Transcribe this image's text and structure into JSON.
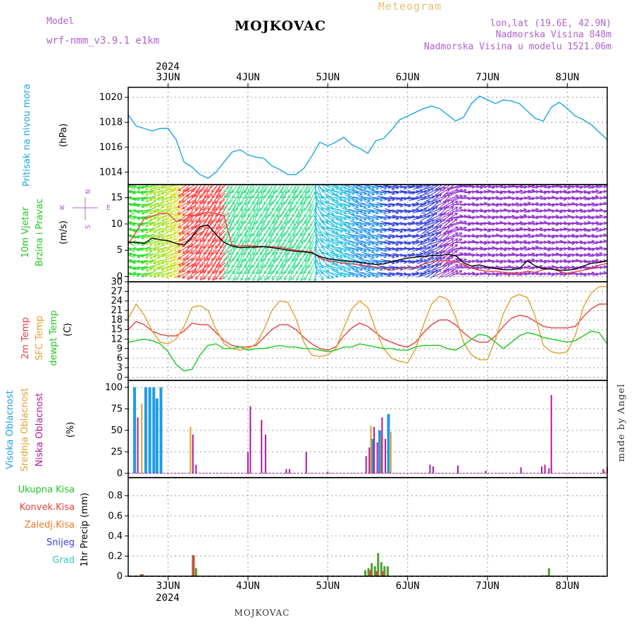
{
  "header": {
    "model_label": "Model",
    "model_name": "wrf-nmm_v3.9.1 e1km",
    "location": "MOJKOVAC",
    "meteogram": "Meteogram",
    "lonlat": "lon,lat (19.6E, 42.9N)",
    "altitude": "Nadmorska Visina 848m",
    "model_altitude": "Nadmorska Visina u modelu 1521.06m",
    "footer_location": "MOJKOVAC",
    "watermark": "made by Angel"
  },
  "time_axis": {
    "year": "2024",
    "days": [
      "3JUN",
      "4JUN",
      "5JUN",
      "6JUN",
      "7JUN",
      "8JUN"
    ]
  },
  "colors": {
    "pressure": "#1ca5e6",
    "temp2m": "#e8413c",
    "sfc_temp": "#e0a030",
    "dewpoint": "#1fc81f",
    "high_cloud": "#1f9be6",
    "mid_cloud": "#e0a030",
    "low_cloud": "#b0189a",
    "total_precip": "#4aa030",
    "conv_precip": "#e8413c",
    "frozen_precip": "#ee7722",
    "snow": "#3a3ae8",
    "hail": "#30c8c8",
    "wind_text": "#b060d0"
  },
  "chart_data": [
    {
      "type": "line",
      "title": "",
      "ylabel_lines": [
        "Pritisak na nivou mora",
        "(hPa)"
      ],
      "ylim": [
        1013,
        1020.8
      ],
      "yticks": [
        1014,
        1016,
        1018,
        1020
      ],
      "grid": true,
      "x": [
        2.5,
        2.6,
        2.7,
        2.8,
        2.9,
        3.0,
        3.1,
        3.2,
        3.3,
        3.4,
        3.5,
        3.6,
        3.7,
        3.8,
        3.9,
        4.0,
        4.1,
        4.2,
        4.3,
        4.4,
        4.5,
        4.6,
        4.7,
        4.8,
        4.9,
        5.0,
        5.1,
        5.2,
        5.3,
        5.4,
        5.5,
        5.6,
        5.7,
        5.8,
        5.9,
        6.0,
        6.1,
        6.2,
        6.3,
        6.4,
        6.5,
        6.6,
        6.7,
        6.8,
        6.9,
        7.0,
        7.1,
        7.2,
        7.3,
        7.4,
        7.5,
        7.6,
        7.7,
        7.8,
        7.9,
        8.0,
        8.1,
        8.2,
        8.3,
        8.4,
        8.5
      ],
      "series": [
        {
          "name": "",
          "values": [
            1018.6,
            1017.7,
            1017.5,
            1017.3,
            1017.5,
            1017.5,
            1016.6,
            1014.8,
            1014.4,
            1013.8,
            1013.5,
            1014.0,
            1014.8,
            1015.6,
            1015.8,
            1015.4,
            1015.2,
            1015.1,
            1014.5,
            1014.2,
            1013.8,
            1013.8,
            1014.3,
            1015.3,
            1016.4,
            1016.1,
            1016.4,
            1016.8,
            1016.2,
            1015.9,
            1015.5,
            1016.5,
            1016.7,
            1017.4,
            1018.2,
            1018.5,
            1018.8,
            1019.1,
            1019.3,
            1019.1,
            1018.6,
            1018.1,
            1018.4,
            1019.5,
            1020.1,
            1019.8,
            1019.5,
            1019.8,
            1019.7,
            1019.5,
            1018.9,
            1018.3,
            1018.1,
            1019.2,
            1019.6,
            1019.1,
            1018.5,
            1018.2,
            1017.8,
            1017.2,
            1016.6
          ]
        }
      ]
    },
    {
      "type": "barbs",
      "title": "",
      "ylabel_lines": [
        "10m Vjetar",
        "Brzina i Pravac",
        "(m/s)"
      ],
      "compass_labels": [
        "N",
        "W",
        "E",
        "S"
      ],
      "ylim": [
        -1,
        17.5
      ],
      "yticks": [
        0,
        5,
        10,
        15
      ],
      "x": [
        2.5,
        2.6,
        2.7,
        2.8,
        2.9,
        3.0,
        3.1,
        3.2,
        3.3,
        3.4,
        3.5,
        3.6,
        3.7,
        3.8,
        3.9,
        4.0,
        4.1,
        4.2,
        4.3,
        4.4,
        4.5,
        4.6,
        4.7,
        4.8,
        4.9,
        5.0,
        5.1,
        5.2,
        5.3,
        5.4,
        5.5,
        5.6,
        5.7,
        5.8,
        5.9,
        6.0,
        6.1,
        6.2,
        6.3,
        6.4,
        6.5,
        6.6,
        6.7,
        6.8,
        6.9,
        7.0,
        7.1,
        7.2,
        7.3,
        7.4,
        7.5,
        7.6,
        7.7,
        7.8,
        7.9,
        8.0,
        8.1,
        8.2,
        8.3,
        8.4,
        8.5
      ],
      "series": [
        {
          "name": "",
          "values": [
            6.5,
            6.5,
            6.3,
            7.3,
            7.0,
            6.8,
            6.3,
            6.0,
            7.5,
            9.5,
            9.8,
            8.0,
            6.5,
            5.8,
            5.5,
            5.6,
            5.6,
            5.7,
            5.5,
            5.3,
            5.0,
            4.8,
            4.7,
            4.5,
            3.8,
            3.4,
            3.2,
            3.0,
            2.9,
            2.7,
            2.5,
            2.3,
            2.4,
            2.8,
            3.2,
            3.5,
            3.7,
            3.8,
            4.0,
            4.0,
            4.2,
            4.0,
            2.6,
            2.0,
            2.2,
            1.8,
            1.5,
            1.3,
            1.3,
            1.5,
            3.0,
            2.0,
            1.5,
            1.4,
            1.2,
            1.2,
            1.4,
            2.0,
            2.5,
            2.7,
            3.0
          ]
        },
        {
          "name": "",
          "values": [
            6.2,
            8.5,
            11.0,
            11.5,
            12.0,
            12.0,
            10.5,
            10.8,
            11.5,
            11.8,
            12.3,
            12.0,
            11.5,
            6.0,
            5.8,
            5.9,
            5.8,
            5.7,
            5.7,
            5.6,
            5.3,
            5.0,
            4.8,
            4.7,
            3.5,
            3.0,
            2.8,
            2.5,
            2.4,
            2.2,
            2.0,
            1.8,
            1.5,
            1.2,
            1.5,
            1.7,
            1.6,
            2.4,
            2.8,
            3.0,
            3.0,
            2.9,
            2.3,
            1.6,
            1.2,
            1.0,
            1.0,
            0.8,
            0.7,
            0.7,
            1.0,
            0.8,
            1.3,
            1.5,
            1.0,
            0.6,
            0.9,
            1.2,
            1.5,
            2.2,
            2.5
          ]
        }
      ],
      "dir": [
        290,
        275,
        260,
        250,
        250,
        248,
        245,
        235,
        225,
        220,
        215,
        215,
        220,
        210,
        205,
        205,
        205,
        210,
        210,
        210,
        210,
        210,
        210,
        205,
        150,
        120,
        110,
        110,
        110,
        110,
        110,
        105,
        100,
        100,
        95,
        90,
        80,
        70,
        60,
        60,
        50,
        70,
        90,
        90,
        90,
        90,
        90,
        90,
        90,
        85,
        85,
        85,
        90,
        90,
        90,
        90,
        90,
        90,
        85,
        85,
        80
      ]
    },
    {
      "type": "line",
      "title": "",
      "ylabel_lines": [
        "2m Temp",
        "SFC Temp",
        "dewpt Temp",
        "(C)"
      ],
      "ylim": [
        -1,
        30
      ],
      "yticks": [
        0,
        3,
        6,
        9,
        12,
        15,
        18,
        21,
        24,
        27,
        30
      ],
      "grid": true,
      "x": [
        2.5,
        2.6,
        2.7,
        2.8,
        2.9,
        3.0,
        3.1,
        3.2,
        3.3,
        3.4,
        3.5,
        3.6,
        3.7,
        3.8,
        3.9,
        4.0,
        4.1,
        4.2,
        4.3,
        4.4,
        4.5,
        4.6,
        4.7,
        4.8,
        4.9,
        5.0,
        5.1,
        5.2,
        5.3,
        5.4,
        5.5,
        5.6,
        5.7,
        5.8,
        5.9,
        6.0,
        6.1,
        6.2,
        6.3,
        6.4,
        6.5,
        6.6,
        6.7,
        6.8,
        6.9,
        7.0,
        7.1,
        7.2,
        7.3,
        7.4,
        7.5,
        7.6,
        7.7,
        7.8,
        7.9,
        8.0,
        8.1,
        8.2,
        8.3,
        8.4,
        8.5
      ],
      "series": [
        {
          "name": "2m Temp",
          "values": [
            15.0,
            17.5,
            16.5,
            14.5,
            13.5,
            13.0,
            13.0,
            14.5,
            17.0,
            16.5,
            16.5,
            14.0,
            11.5,
            10.0,
            9.5,
            9.5,
            10.0,
            12.5,
            15.0,
            16.5,
            16.5,
            15.0,
            12.5,
            10.5,
            9.0,
            8.5,
            9.5,
            13.0,
            15.5,
            17.0,
            16.0,
            14.0,
            12.0,
            11.0,
            10.0,
            9.5,
            11.0,
            14.0,
            16.5,
            18.0,
            18.0,
            16.5,
            14.0,
            12.0,
            11.0,
            11.0,
            13.0,
            16.0,
            18.5,
            19.5,
            19.0,
            17.5,
            16.0,
            15.5,
            15.5,
            15.5,
            16.0,
            19.0,
            21.5,
            23.0,
            23.0
          ]
        },
        {
          "name": "SFC Temp",
          "values": [
            18.5,
            23.0,
            19.5,
            14.5,
            11.0,
            10.5,
            12.0,
            16.0,
            22.0,
            22.5,
            21.0,
            15.0,
            10.5,
            9.0,
            8.5,
            9.0,
            10.5,
            15.0,
            21.0,
            24.0,
            23.5,
            18.5,
            11.0,
            7.0,
            6.5,
            7.0,
            9.0,
            15.5,
            21.5,
            24.0,
            22.0,
            15.0,
            9.0,
            6.0,
            5.0,
            4.5,
            9.0,
            16.5,
            23.0,
            25.5,
            24.5,
            19.0,
            11.0,
            7.0,
            5.5,
            5.5,
            12.0,
            20.0,
            25.0,
            26.0,
            25.0,
            19.0,
            10.0,
            8.0,
            7.5,
            8.0,
            13.0,
            22.0,
            26.5,
            28.5,
            28.5
          ]
        },
        {
          "name": "dewpt Temp",
          "values": [
            11.0,
            11.5,
            12.0,
            11.5,
            10.5,
            8.0,
            4.0,
            2.0,
            2.5,
            7.0,
            10.0,
            10.5,
            9.0,
            9.0,
            9.5,
            8.5,
            9.0,
            9.0,
            9.5,
            10.0,
            9.5,
            9.5,
            9.0,
            9.0,
            8.5,
            8.0,
            8.5,
            9.5,
            9.5,
            10.5,
            10.0,
            9.5,
            9.0,
            9.0,
            8.5,
            8.5,
            9.5,
            10.0,
            10.0,
            10.0,
            9.0,
            8.5,
            10.0,
            12.0,
            13.5,
            13.0,
            11.0,
            9.0,
            11.0,
            13.0,
            14.0,
            13.5,
            12.5,
            12.0,
            11.5,
            11.0,
            11.5,
            13.0,
            14.5,
            14.0,
            10.5
          ]
        }
      ]
    },
    {
      "type": "bar",
      "title": "",
      "ylabel_lines": [
        "Visoka Oblacnost",
        "Srednja Oblacnost",
        "Niska Oblacnost",
        "(%)"
      ],
      "ylim": [
        -5,
        108
      ],
      "yticks": [
        0,
        25,
        50,
        75,
        100
      ],
      "grid": true,
      "series": [
        {
          "name": "Visoka Oblacnost",
          "x": [
            2.58,
            2.72,
            2.77,
            2.82,
            2.86,
            2.91,
            5.56,
            5.65,
            5.76
          ],
          "values": [
            100,
            100,
            100,
            100,
            87,
            100,
            40,
            50,
            69
          ]
        },
        {
          "name": "Srednja Oblacnost",
          "x": [
            2.67,
            3.28,
            5.54,
            5.67,
            5.79,
            8.47
          ],
          "values": [
            81,
            54,
            55,
            43,
            48,
            3
          ]
        },
        {
          "name": "Niska Oblacnost",
          "x": [
            2.62,
            3.31,
            3.35,
            4.0,
            4.03,
            4.17,
            4.22,
            4.48,
            4.52,
            4.73,
            5.0,
            5.48,
            5.52,
            5.58,
            5.62,
            5.68,
            5.72,
            6.28,
            6.32,
            6.63,
            6.98,
            7.42,
            7.68,
            7.72,
            7.77,
            7.8,
            8.45,
            8.5
          ],
          "values": [
            65,
            45,
            10,
            25,
            78,
            62,
            45,
            5,
            5,
            25,
            2,
            20,
            30,
            54,
            36,
            65,
            40,
            10,
            8,
            9,
            3,
            7,
            8,
            10,
            6,
            91,
            5,
            7
          ]
        }
      ]
    },
    {
      "type": "bar",
      "title": "",
      "ylabel_lines": [
        "1hr Precip (mm)"
      ],
      "ylim": [
        0,
        0.98
      ],
      "yticks": [
        0,
        0.2,
        0.4,
        0.6,
        0.8
      ],
      "grid": true,
      "legend": [
        "Ukupna Kisa",
        "Konvek.Kisa",
        "Zaledj.Kisa",
        "Snijeg",
        "Grad"
      ],
      "series": [
        {
          "name": "Ukupna Kisa",
          "x": [
            2.66,
            3.31,
            3.35,
            5.47,
            5.51,
            5.55,
            5.59,
            5.63,
            5.67,
            5.71,
            5.75,
            7.69,
            7.73,
            7.77
          ],
          "values": [
            0.02,
            0.21,
            0.08,
            0.06,
            0.08,
            0.13,
            0.1,
            0.23,
            0.14,
            0.1,
            0.1,
            0.01,
            0.01,
            0.08
          ]
        },
        {
          "name": "Konvek.Kisa",
          "x": [
            2.68,
            3.32,
            5.53,
            5.61,
            5.69
          ],
          "values": [
            0.02,
            0.21,
            0.06,
            0.05,
            0.05
          ]
        }
      ]
    }
  ]
}
